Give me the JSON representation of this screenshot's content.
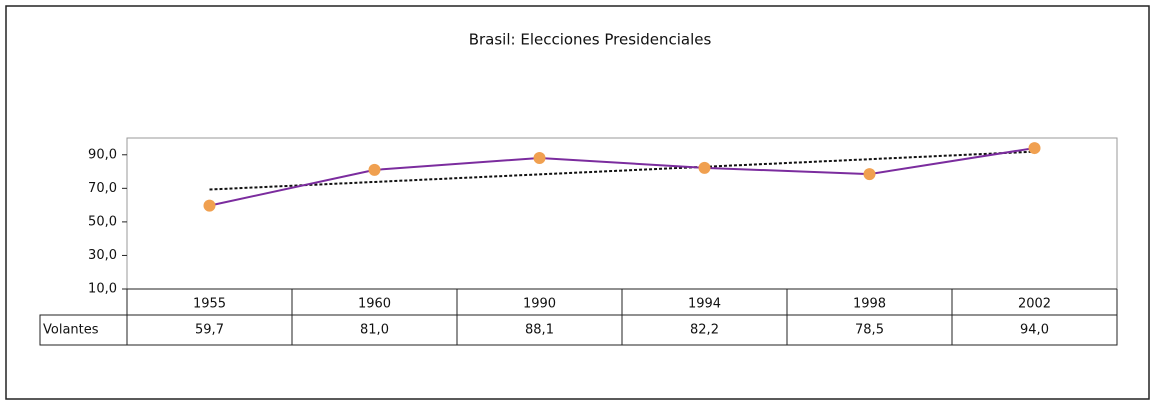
{
  "chart_data": {
    "type": "line",
    "title": "Brasil: Elecciones Presidenciales",
    "categories": [
      "1955",
      "1960",
      "1990",
      "1994",
      "1998",
      "2002"
    ],
    "series": [
      {
        "name": "Volantes",
        "color": "#7b2c9e",
        "marker_color": "#f0a050",
        "values": [
          59.7,
          81.0,
          88.1,
          82.2,
          78.5,
          94.0
        ],
        "value_labels": [
          "59,7",
          "81,0",
          "88,1",
          "82,2",
          "78,5",
          "94,0"
        ]
      }
    ],
    "ylim": [
      10,
      100
    ],
    "yticks": [
      {
        "value": 10,
        "label": "10,0"
      },
      {
        "value": 30,
        "label": "30,0"
      },
      {
        "value": 50,
        "label": "50,0"
      },
      {
        "value": 70,
        "label": "70,0"
      },
      {
        "value": 90,
        "label": "90,0"
      }
    ],
    "trendline": true
  }
}
